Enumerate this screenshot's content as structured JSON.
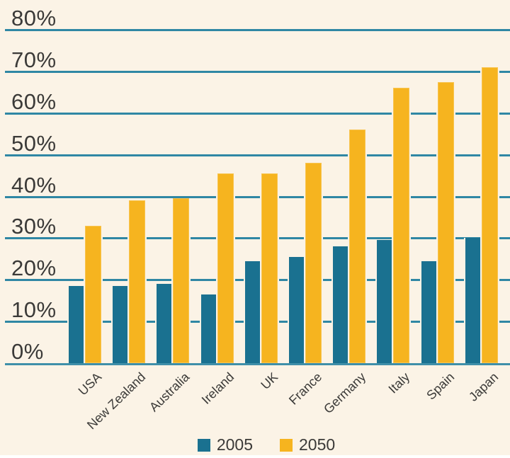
{
  "chart_data": {
    "type": "bar",
    "title": "",
    "xlabel": "",
    "ylabel": "",
    "categories": [
      "USA",
      "New Zealand",
      "Australia",
      "Ireland",
      "UK",
      "France",
      "Germany",
      "Italy",
      "Spain",
      "Japan"
    ],
    "series": [
      {
        "name": "2005",
        "color": "#1a7190",
        "values": [
          18.5,
          18.5,
          19,
          16.5,
          24.5,
          25.5,
          28,
          29.5,
          24.5,
          30
        ]
      },
      {
        "name": "2050",
        "color": "#f6b41f",
        "values": [
          33,
          39,
          39.5,
          45.5,
          45.5,
          48,
          56,
          66,
          67.5,
          71
        ]
      }
    ],
    "ylim": [
      0,
      80
    ],
    "ytick_step": 10,
    "yticks": [
      "0%",
      "10%",
      "20%",
      "30%",
      "40%",
      "50%",
      "60%",
      "70%",
      "80%"
    ],
    "grid": "horizontal",
    "legend_position": "bottom"
  },
  "colors": {
    "background": "#fbf3e6",
    "gridline": "#2f87a4",
    "baseline": "#3f8fa9",
    "text": "#3b3a38",
    "series_2005": "#1a7190",
    "series_2050": "#f6b41f",
    "bottom_strip": "#ffffff"
  },
  "legend": {
    "items": [
      {
        "label": "2005",
        "color": "#1a7190"
      },
      {
        "label": "2050",
        "color": "#f6b41f"
      }
    ]
  }
}
